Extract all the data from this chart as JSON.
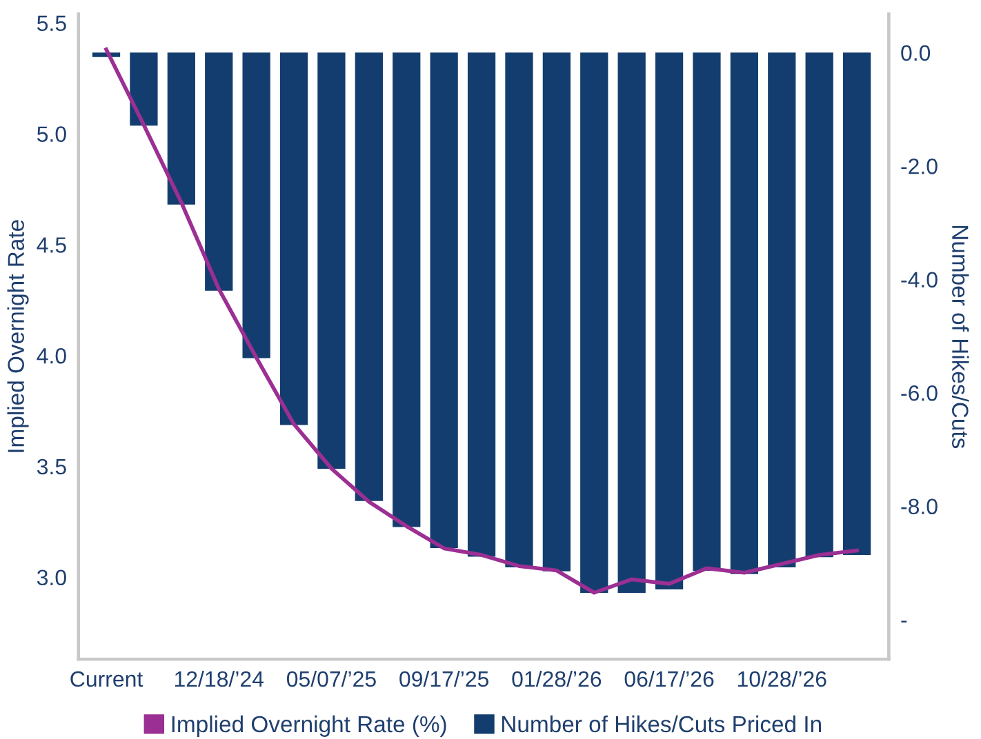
{
  "chart_data": {
    "type": "bar",
    "ylabel": "Implied Overnight Rate",
    "y2label": "Number of Hikes/Cuts",
    "categories": [
      "Current",
      null,
      null,
      "12/18/’24",
      null,
      null,
      "05/07/’25",
      null,
      null,
      "09/17/’25",
      null,
      null,
      "01/28/’26",
      null,
      null,
      "06/17/’26",
      null,
      null,
      "10/28/’26",
      null,
      null
    ],
    "series": [
      {
        "name": "Implied Overnight Rate (%)",
        "type": "line",
        "color": "#9b2f93",
        "values": [
          5.38,
          5.04,
          4.69,
          4.3,
          3.99,
          3.69,
          3.49,
          3.34,
          3.23,
          3.13,
          3.1,
          3.05,
          3.03,
          2.93,
          2.99,
          2.97,
          3.04,
          3.02,
          3.06,
          3.1,
          3.12
        ]
      },
      {
        "name": "Number of Hikes/Cuts Priced In",
        "axis": "y2",
        "color": "#133d6e",
        "values": [
          -0.08,
          -1.29,
          -2.68,
          -4.2,
          -5.39,
          -6.57,
          -7.34,
          -7.91,
          -8.37,
          -8.74,
          -8.89,
          -9.08,
          -9.15,
          -9.53,
          -9.53,
          -9.47,
          -9.14,
          -9.2,
          -9.08,
          -8.9,
          -8.86
        ]
      }
    ],
    "ylim": [
      2.63,
      5.54
    ],
    "yticks": [
      {
        "value": 3,
        "label": "3.0"
      },
      3.5,
      {
        "value": 4,
        "label": "4.0"
      },
      4.5,
      {
        "value": 5,
        "label": "5.0"
      },
      5.5
    ],
    "y2lim": [
      -10.7,
      0.68
    ],
    "y2ticks": [
      {
        "value": 0,
        "label": "0.0"
      },
      {
        "value": -2,
        "label": "-2.0"
      },
      {
        "value": -4,
        "label": "-4.0"
      },
      {
        "value": -6,
        "label": "-6.0"
      },
      {
        "value": -8,
        "label": "-8.0"
      },
      {
        "value": -10,
        "label": "-"
      }
    ],
    "grid": false,
    "legend": "bottom",
    "line_style": "solid",
    "marker": "none"
  }
}
